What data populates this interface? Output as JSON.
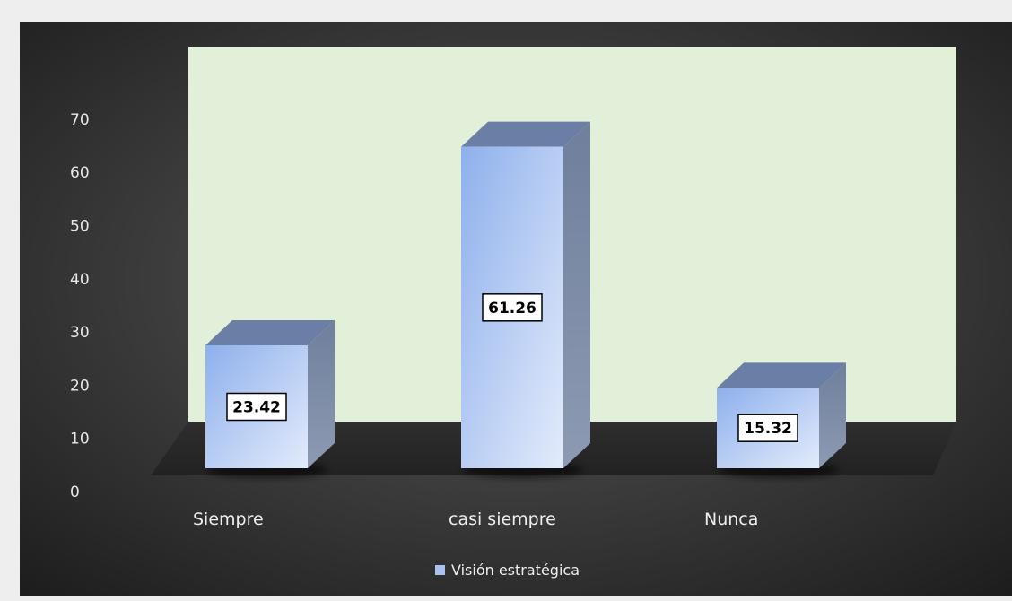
{
  "chart_data": {
    "type": "bar",
    "style": "3d-column",
    "categories": [
      "Siempre",
      "casi siempre",
      "Nunca"
    ],
    "series": [
      {
        "name": "Visión estratégica",
        "values": [
          23.42,
          61.26,
          15.32
        ],
        "data_labels": [
          "23.42",
          "61.26",
          "15.32"
        ]
      }
    ],
    "y_ticks": [
      "0",
      "10",
      "20",
      "30",
      "40",
      "50",
      "60",
      "70"
    ],
    "ylim": [
      0,
      70
    ],
    "grid": false,
    "legend_position": "bottom",
    "colors": {
      "chart_background_center": "#5a5a5a",
      "chart_background_edge": "#1c1c1c",
      "back_wall": "#e3f0d9",
      "floor": "#262626",
      "bar_front_light": "#e3ebfb",
      "bar_front_dark": "#8eb0ec",
      "bar_side": "#7a8aa6",
      "bar_top": "#6b7fa6",
      "legend_swatch": "#a9c1ee",
      "text": "#e8e8e8"
    }
  }
}
